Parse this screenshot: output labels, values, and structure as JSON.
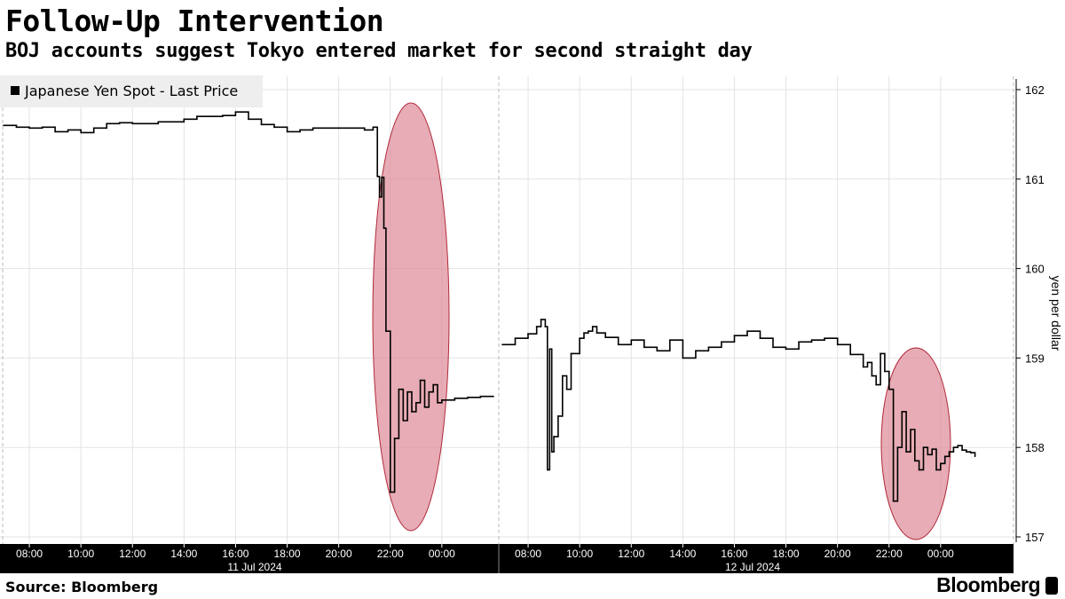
{
  "header": {
    "title": "Follow-Up Intervention",
    "subtitle": "BOJ accounts suggest Tokyo entered market for second straight day"
  },
  "footer": {
    "source": "Source: Bloomberg",
    "brand": "Bloomberg"
  },
  "chart_data": {
    "type": "line",
    "title": "Follow-Up Intervention",
    "subtitle": "BOJ accounts suggest Tokyo entered market for second straight day",
    "ylabel": "yen per dollar",
    "ylim": [
      156.95,
      162.1
    ],
    "y_ticks": [
      157,
      158,
      159,
      160,
      161,
      162
    ],
    "grid": true,
    "legend_position": "top-left",
    "x_ticks": [
      "08:00",
      "10:00",
      "12:00",
      "14:00",
      "16:00",
      "18:00",
      "20:00",
      "22:00",
      "00:00",
      "08:00",
      "10:00",
      "12:00",
      "14:00",
      "16:00",
      "18:00",
      "20:00",
      "22:00",
      "00:00"
    ],
    "date_labels": [
      "11 Jul 2024",
      "12 Jul 2024"
    ],
    "series": [
      {
        "name": "Japanese Yen Spot - Last Price",
        "color": "#000000",
        "segments": [
          {
            "x": [
              "07:00",
              "07:30",
              "08:00",
              "08:30",
              "09:00",
              "09:30",
              "10:00",
              "10:30",
              "11:00",
              "11:30",
              "12:00",
              "13:00",
              "14:00",
              "14:30",
              "15:00",
              "15:30",
              "16:00",
              "16:30",
              "17:00",
              "17:30",
              "18:00",
              "18:30",
              "19:00",
              "20:00",
              "21:00",
              "21:20",
              "21:30",
              "21:35",
              "21:40",
              "21:45",
              "21:50",
              "22:00",
              "22:10",
              "22:20",
              "22:30",
              "22:40",
              "22:50",
              "23:00",
              "23:10",
              "23:20",
              "23:30",
              "23:40",
              "23:50",
              "00:00",
              "00:30",
              "01:00",
              "01:30",
              "02:00"
            ],
            "y": [
              161.6,
              161.58,
              161.57,
              161.58,
              161.53,
              161.55,
              161.52,
              161.57,
              161.62,
              161.63,
              161.62,
              161.64,
              161.67,
              161.7,
              161.7,
              161.71,
              161.75,
              161.67,
              161.61,
              161.58,
              161.53,
              161.55,
              161.57,
              161.57,
              161.55,
              161.58,
              161.03,
              160.8,
              161.02,
              160.45,
              159.3,
              157.5,
              158.1,
              158.65,
              158.3,
              158.62,
              158.4,
              158.5,
              158.75,
              158.45,
              158.62,
              158.7,
              158.5,
              158.53,
              158.55,
              158.56,
              158.57,
              158.57
            ]
          },
          {
            "x": [
              "07:00",
              "07:30",
              "08:00",
              "08:20",
              "08:30",
              "08:40",
              "08:45",
              "08:50",
              "08:55",
              "09:00",
              "09:10",
              "09:20",
              "09:30",
              "09:40",
              "10:00",
              "10:10",
              "10:20",
              "10:30",
              "10:40",
              "11:00",
              "11:30",
              "12:00",
              "12:30",
              "13:00",
              "13:30",
              "14:00",
              "14:30",
              "15:00",
              "15:30",
              "16:00",
              "16:30",
              "17:00",
              "17:30",
              "18:00",
              "18:30",
              "19:00",
              "19:30",
              "20:00",
              "20:30",
              "21:00",
              "21:10",
              "21:20",
              "21:30",
              "21:40",
              "21:50",
              "22:00",
              "22:10",
              "22:20",
              "22:30",
              "22:40",
              "22:50",
              "23:00",
              "23:10",
              "23:20",
              "23:30",
              "23:40",
              "23:50",
              "00:00",
              "00:10",
              "00:20",
              "00:30",
              "00:40",
              "00:50",
              "01:00",
              "01:10",
              "01:20"
            ],
            "y": [
              159.15,
              159.22,
              159.27,
              159.35,
              159.43,
              159.35,
              157.75,
              159.1,
              157.95,
              158.12,
              158.35,
              158.8,
              158.65,
              159.05,
              159.22,
              159.28,
              159.3,
              159.35,
              159.28,
              159.23,
              159.15,
              159.2,
              159.12,
              159.08,
              159.2,
              159.0,
              159.08,
              159.12,
              159.18,
              159.25,
              159.3,
              159.22,
              159.12,
              159.1,
              159.18,
              159.2,
              159.22,
              159.15,
              159.04,
              158.9,
              158.95,
              158.8,
              158.7,
              159.05,
              158.85,
              158.65,
              157.4,
              158.0,
              158.4,
              157.95,
              158.2,
              157.85,
              157.75,
              158.0,
              157.92,
              157.98,
              157.75,
              157.82,
              157.9,
              157.95,
              158.0,
              158.02,
              157.97,
              157.95,
              157.94,
              157.9
            ]
          }
        ]
      }
    ],
    "annotations": [
      "intervention-highlight-1",
      "intervention-highlight-2"
    ]
  }
}
